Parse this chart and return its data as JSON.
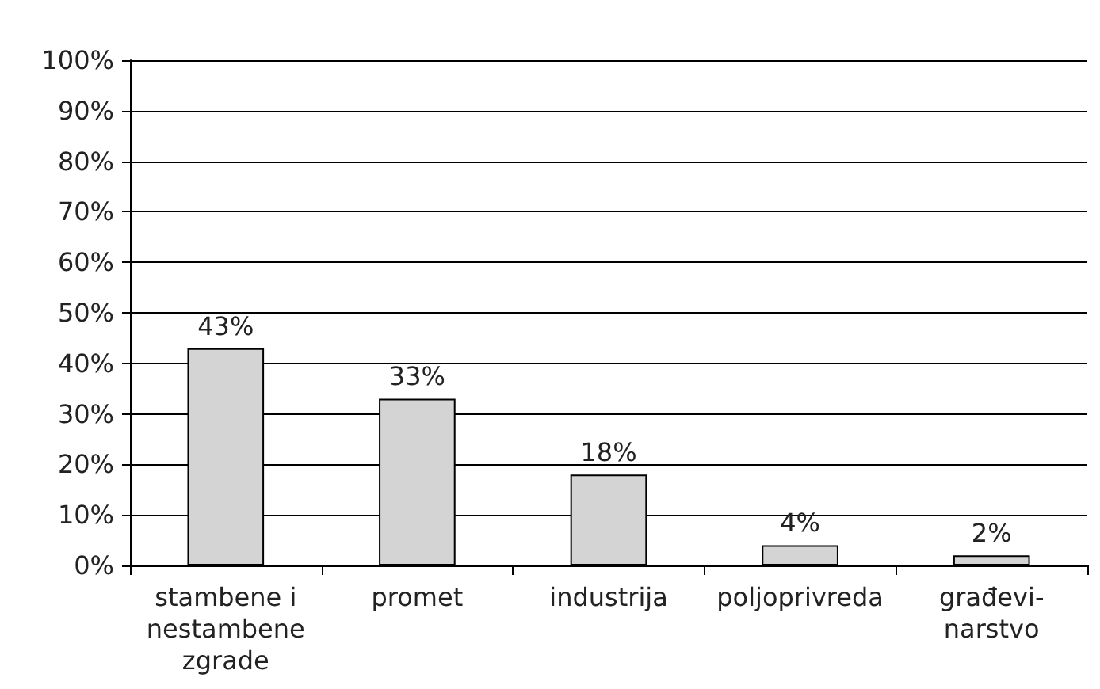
{
  "chart_data": {
    "type": "bar",
    "categories": [
      "stambene i\nnestambene\nzgrade",
      "promet",
      "industrija",
      "poljoprivreda",
      "građevi-\nnarstvo"
    ],
    "values": [
      43,
      33,
      18,
      4,
      2
    ],
    "value_labels": [
      "43%",
      "33%",
      "18%",
      "4%",
      "2%"
    ],
    "color": "#d4d4d4",
    "ylim": [
      0,
      100
    ],
    "yticks": [
      {
        "value": 0,
        "label": "0%"
      },
      {
        "value": 10,
        "label": "10%"
      },
      {
        "value": 20,
        "label": "20%"
      },
      {
        "value": 30,
        "label": "30%"
      },
      {
        "value": 40,
        "label": "40%"
      },
      {
        "value": 50,
        "label": "50%"
      },
      {
        "value": 60,
        "label": "60%"
      },
      {
        "value": 70,
        "label": "70%"
      },
      {
        "value": 80,
        "label": "80%"
      },
      {
        "value": 90,
        "label": "90%"
      },
      {
        "value": 100,
        "label": "100%"
      }
    ],
    "grid": "y"
  }
}
